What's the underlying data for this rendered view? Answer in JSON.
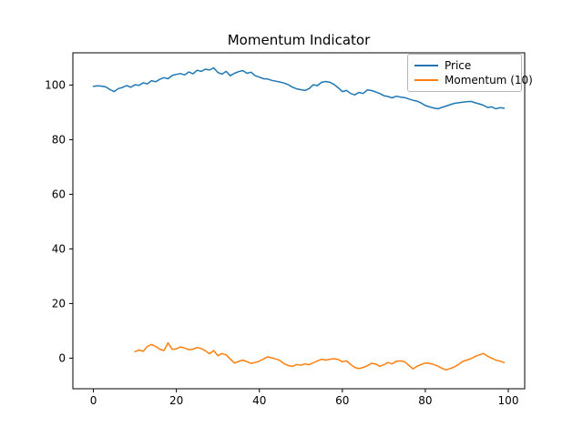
{
  "figure": {
    "title": "Momentum Indicator",
    "background": "#ffffff"
  },
  "legend": {
    "position": "upper right",
    "entries": [
      {
        "label": "Price",
        "color": "#1f77b4"
      },
      {
        "label": "Momentum (10)",
        "color": "#ff7f0e"
      }
    ]
  },
  "chart_data": {
    "type": "line",
    "title": "Momentum Indicator",
    "xlabel": "",
    "ylabel": "",
    "grid": false,
    "legend_position": "upper right",
    "xlim": [
      -4.95,
      103.95
    ],
    "ylim": [
      -11.2,
      111.8
    ],
    "x_ticks": [
      0,
      20,
      40,
      60,
      80,
      100
    ],
    "y_ticks": [
      0,
      20,
      40,
      60,
      80,
      100
    ],
    "axis_color": "#000000",
    "series": [
      {
        "name": "Price",
        "color": "#1f77b4",
        "x_start": 0,
        "values": [
          99.5,
          99.7,
          99.6,
          99.3,
          98.3,
          97.6,
          98.7,
          99.1,
          99.8,
          99.2,
          100.1,
          99.9,
          100.8,
          100.4,
          101.6,
          101.2,
          102.1,
          102.7,
          102.3,
          103.5,
          103.9,
          104.2,
          103.7,
          104.8,
          104.1,
          105.4,
          105.0,
          105.8,
          105.5,
          106.3,
          104.6,
          104.0,
          105.0,
          103.4,
          104.3,
          104.9,
          105.3,
          104.3,
          104.7,
          103.4,
          102.9,
          102.3,
          102.2,
          101.7,
          101.4,
          101.1,
          100.7,
          100.1,
          99.2,
          98.6,
          98.3,
          98.0,
          98.7,
          100.1,
          99.8,
          101.0,
          101.3,
          101.0,
          100.2,
          99.0,
          97.6,
          98.0,
          96.9,
          96.4,
          97.3,
          96.9,
          98.2,
          98.0,
          97.5,
          96.9,
          96.1,
          95.8,
          95.3,
          95.9,
          95.6,
          95.4,
          94.9,
          94.4,
          94.1,
          93.4,
          92.5,
          92.0,
          91.6,
          91.3,
          91.8,
          92.3,
          92.8,
          93.3,
          93.5,
          93.7,
          93.9,
          94.0,
          93.5,
          93.1,
          92.6,
          91.8,
          92.0,
          91.3,
          91.7,
          91.5
        ]
      },
      {
        "name": "Momentum (10)",
        "color": "#ff7f0e",
        "x_start": 10,
        "values": [
          2.4,
          3.0,
          2.5,
          4.3,
          5.0,
          4.3,
          3.3,
          2.8,
          5.6,
          3.2,
          3.4,
          4.1,
          3.7,
          3.1,
          3.3,
          3.9,
          3.5,
          2.7,
          1.6,
          2.8,
          0.9,
          1.7,
          1.2,
          -0.3,
          -1.8,
          -1.2,
          -0.7,
          -1.3,
          -1.9,
          -1.6,
          -1.1,
          -0.3,
          0.5,
          0.1,
          -0.3,
          -0.9,
          -2.1,
          -2.7,
          -3.0,
          -2.3,
          -2.6,
          -2.1,
          -2.4,
          -1.7,
          -1.0,
          -0.4,
          -0.7,
          -0.4,
          -0.2,
          -0.5,
          -1.3,
          -1.0,
          -2.3,
          -3.4,
          -3.8,
          -3.4,
          -2.8,
          -1.9,
          -2.1,
          -3.0,
          -2.4,
          -1.6,
          -2.1,
          -1.1,
          -1.0,
          -1.3,
          -2.6,
          -3.9,
          -3.0,
          -2.3,
          -1.8,
          -1.9,
          -2.3,
          -2.9,
          -3.7,
          -4.3,
          -3.8,
          -3.2,
          -2.3,
          -1.2,
          -0.7,
          -0.2,
          0.6,
          1.2,
          1.7,
          0.7,
          0.0,
          -0.7,
          -1.1,
          -1.6
        ]
      }
    ]
  }
}
